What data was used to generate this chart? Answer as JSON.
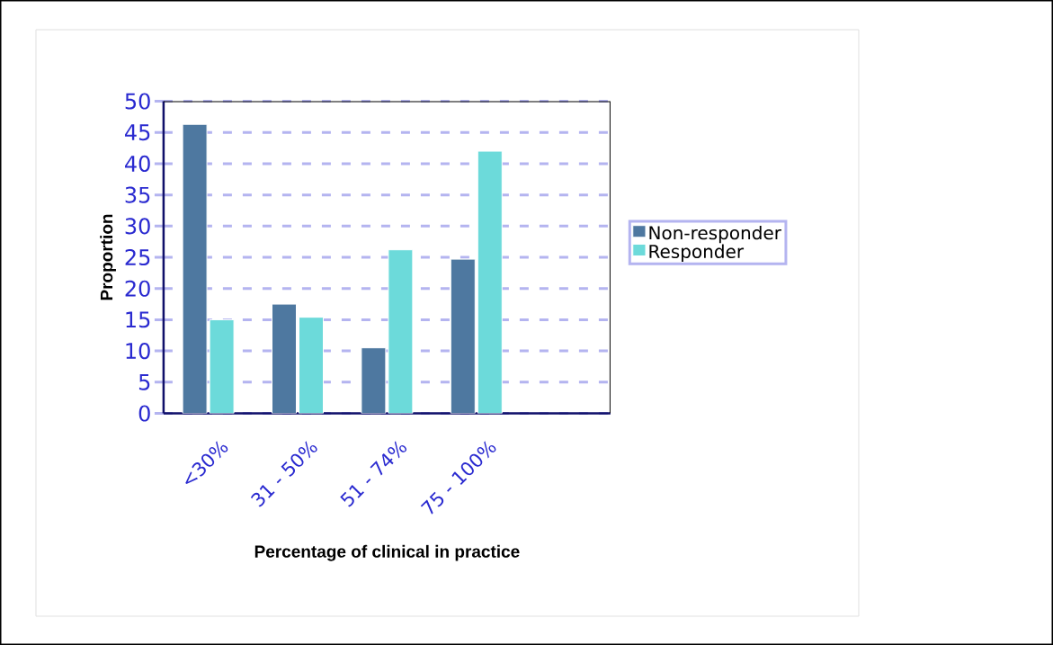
{
  "chart_data": {
    "type": "bar",
    "xlabel": "Percentage of clinical in practice",
    "ylabel": "Proportion",
    "categories": [
      "<30%",
      "31 - 50%",
      "51 - 74%",
      "75 - 100%",
      null
    ],
    "series": [
      {
        "name": "Non-responder",
        "color": "#4e78a0",
        "values": [
          46.3,
          17.5,
          10.5,
          24.7,
          null
        ]
      },
      {
        "name": "Responder",
        "color": "#6cdada",
        "values": [
          15.0,
          15.4,
          26.2,
          42.0,
          null
        ]
      }
    ],
    "ylim": [
      0,
      50
    ],
    "yticks": [
      0,
      5,
      10,
      15,
      20,
      25,
      30,
      35,
      40,
      45,
      50
    ],
    "grid": "y",
    "legend": "right"
  }
}
